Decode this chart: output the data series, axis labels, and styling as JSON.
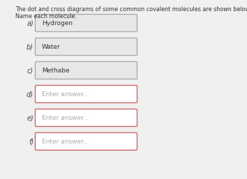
{
  "title_line1": "The dot and cross diagrams of some common covalent molecules are shown below.",
  "title_line2": "Name each molecule.",
  "bg_color": "#f0f0f0",
  "page_bg": "#ffffff",
  "items": [
    {
      "label": "a)",
      "text": "Hydrogen",
      "answered": true,
      "border_color": "#aaaaaa",
      "fill_color": "#e8e8e8"
    },
    {
      "label": "b)",
      "text": "Water",
      "answered": true,
      "border_color": "#aaaaaa",
      "fill_color": "#e8e8e8"
    },
    {
      "label": "c)",
      "text": "Methabe",
      "answered": true,
      "border_color": "#aaaaaa",
      "fill_color": "#e8e8e8"
    },
    {
      "label": "d)",
      "text": "Enter answer...",
      "answered": false,
      "border_color": "#cc6666",
      "fill_color": "#ffffff"
    },
    {
      "label": "e)",
      "text": "Enter answer...",
      "answered": false,
      "border_color": "#cc6666",
      "fill_color": "#ffffff"
    },
    {
      "label": "f)",
      "text": "Enter answer...",
      "answered": false,
      "border_color": "#cc6666",
      "fill_color": "#ffffff"
    }
  ],
  "title_fontsize": 5.8,
  "label_fontsize": 7.0,
  "text_fontsize": 6.5,
  "answered_text_color": "#333333",
  "placeholder_text_color": "#aaaaaa",
  "label_color": "#444444"
}
